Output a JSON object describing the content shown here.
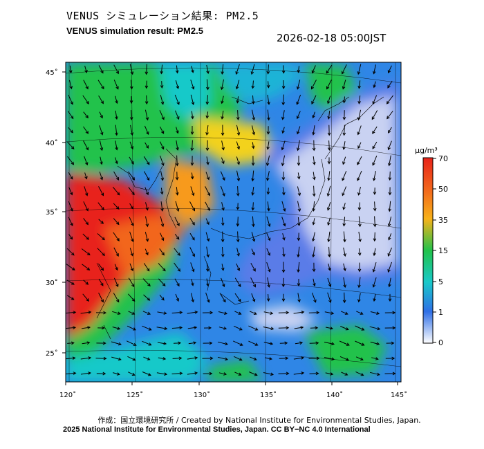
{
  "header": {
    "title_ja": "VENUS シミュレーション結果: PM2.5",
    "title_en": "VENUS simulation result: PM2.5",
    "timestamp": "2026-02-18 05:00JST"
  },
  "map": {
    "lon_labels": [
      "120˚",
      "125˚",
      "130˚",
      "135˚",
      "140˚",
      "145˚"
    ],
    "lat_labels": [
      "45˚",
      "40˚",
      "35˚",
      "30˚",
      "25˚"
    ],
    "colors": {
      "ocean_blue": "#2f86e6",
      "high_red": "#e8231a",
      "mid_orange": "#f79a1a",
      "green": "#22c24b",
      "cyan": "#19c9c9",
      "low_pale": "#c9d2f2"
    }
  },
  "colorbar": {
    "unit": "µg/m³",
    "labels": [
      "70",
      "50",
      "35",
      "15",
      "5",
      "1",
      "0"
    ],
    "levels": [
      70,
      50,
      35,
      15,
      5,
      1,
      0
    ]
  },
  "footer": {
    "credit_ja": "作成：国立環境研究所 / Created by National Institute for Environmental Studies, Japan.",
    "credit_en": "2025 National Institute for Environmental Studies, Japan. CC BY−NC 4.0 International"
  }
}
